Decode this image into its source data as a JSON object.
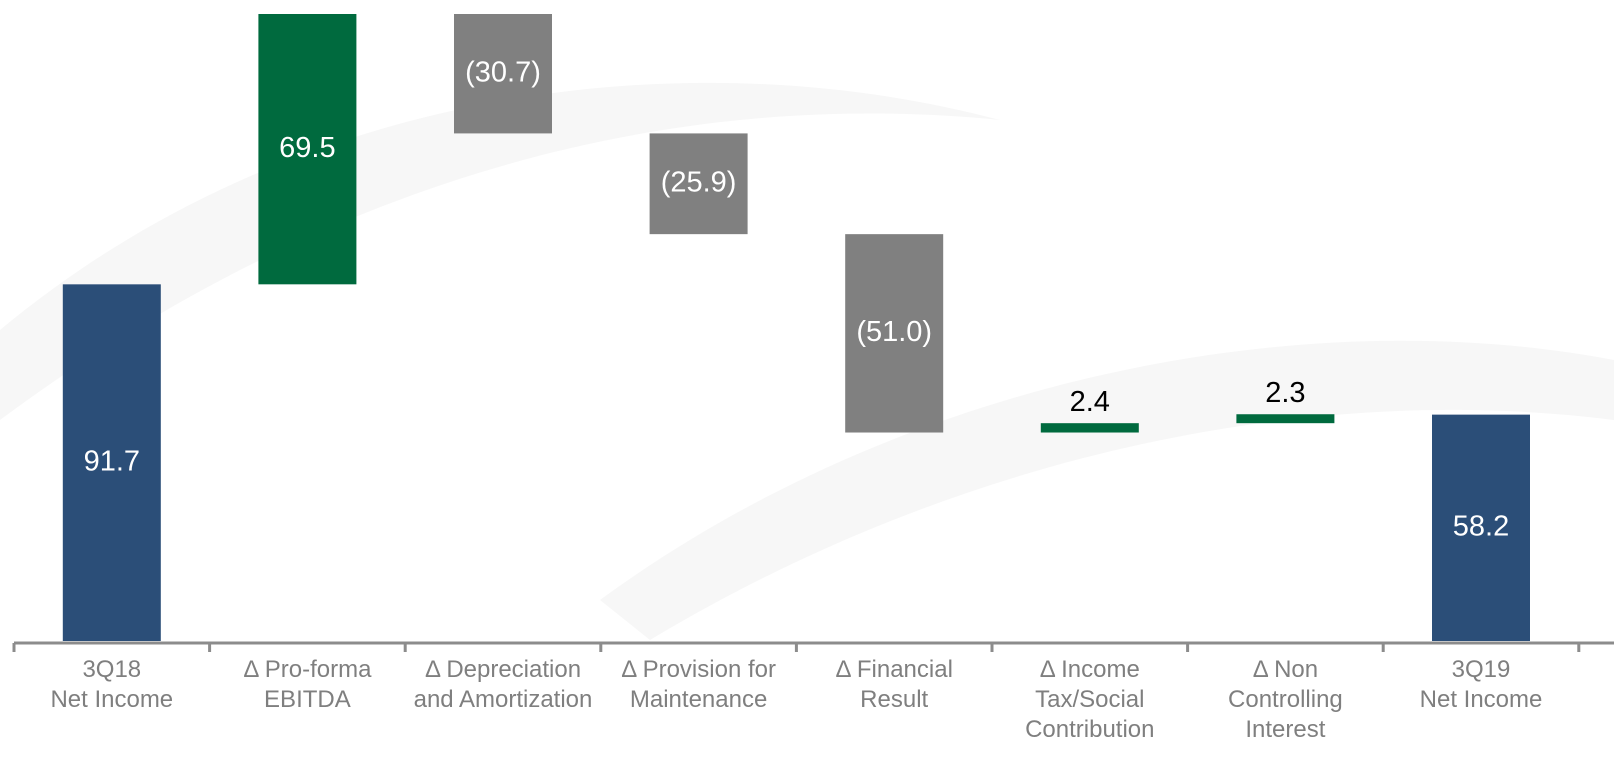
{
  "chart_data": {
    "type": "waterfall",
    "categories": [
      [
        "3Q18",
        "Net Income"
      ],
      [
        "Δ Pro-forma",
        "EBITDA"
      ],
      [
        "Δ Depreciation",
        "and Amortization"
      ],
      [
        "Δ Provision for",
        "Maintenance"
      ],
      [
        "Δ Financial",
        "Result"
      ],
      [
        "Δ Income",
        "Tax/Social",
        "Contribution"
      ],
      [
        "Δ Non",
        "Controlling",
        "Interest"
      ],
      [
        "3Q19",
        "Net Income"
      ]
    ],
    "values": [
      91.7,
      69.5,
      -30.7,
      -25.9,
      -51.0,
      2.4,
      2.3,
      58.2
    ],
    "value_labels": [
      "91.7",
      "69.5",
      "(30.7)",
      "(25.9)",
      "(51.0)",
      "2.4",
      "2.3",
      "58.2"
    ],
    "colors": {
      "total": "#2b4e78",
      "increase": "#006a3e",
      "decrease": "#808080"
    }
  }
}
